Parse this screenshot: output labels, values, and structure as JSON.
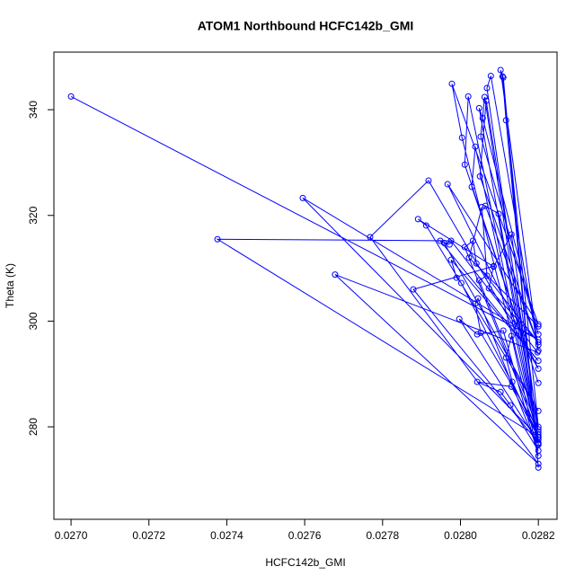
{
  "chart_data": {
    "type": "line",
    "title": "ATOM1 Northbound HCFC142b_GMI",
    "x_label": "HCFC142b_GMI",
    "y_label": "Theta (K)",
    "color": "#0000ff",
    "markers": true,
    "xlim": [
      0.026956,
      0.028248
    ],
    "ylim": [
      262.5,
      350.9
    ],
    "xticks": [
      {
        "value": 0.027,
        "label": "0.0270"
      },
      {
        "value": 0.0272,
        "label": "0.0272"
      },
      {
        "value": 0.0274,
        "label": "0.0274"
      },
      {
        "value": 0.0276,
        "label": "0.0276"
      },
      {
        "value": 0.0278,
        "label": "0.0278"
      },
      {
        "value": 0.028,
        "label": "0.0280"
      },
      {
        "value": 0.0282,
        "label": "0.0282"
      }
    ],
    "yticks": [
      280,
      300,
      320,
      340
    ],
    "x": [
      0.027,
      0.0282,
      0.027595,
      0.0282,
      0.027376,
      0.027976,
      0.028198,
      0.027678,
      0.0282,
      0.027768,
      0.027918,
      0.0282,
      0.027967,
      0.0282,
      0.027978,
      0.028004,
      0.0282,
      0.02802,
      0.028011,
      0.0282,
      0.028029,
      0.028038,
      0.0282,
      0.028048,
      0.028057,
      0.0282,
      0.028052,
      0.028062,
      0.0282,
      0.028068,
      0.028078,
      0.0282,
      0.028103,
      0.02811,
      0.0282,
      0.028117,
      0.028108,
      0.0282,
      0.028066,
      0.02805,
      0.0282,
      0.028064,
      0.028098,
      0.0282,
      0.028131,
      0.028085,
      0.027891,
      0.027912,
      0.0282,
      0.027958,
      0.027972,
      0.027948,
      0.0282,
      0.027976,
      0.02799,
      0.028002,
      0.0282,
      0.028011,
      0.028032,
      0.028041,
      0.0282,
      0.028073,
      0.028085,
      0.027879,
      0.0282,
      0.027997,
      0.028043,
      0.02811,
      0.0282,
      0.028131,
      0.028117,
      0.028133,
      0.0282,
      0.028131,
      0.028043,
      0.028103,
      0.028128,
      0.0282,
      0.028045,
      0.028038,
      0.028052,
      0.0282,
      0.028048,
      0.028068,
      0.028055,
      0.028022,
      0.0282
    ],
    "values": [
      342.5,
      296.5,
      323.3,
      278.1,
      315.5,
      315.2,
      294.1,
      308.8,
      273.0,
      315.9,
      326.6,
      291.0,
      325.9,
      299.4,
      344.9,
      334.7,
      277.6,
      342.5,
      329.6,
      288.3,
      325.4,
      333.0,
      276.8,
      340.3,
      338.4,
      297.5,
      334.9,
      342.4,
      276.6,
      344.1,
      346.4,
      294.4,
      347.5,
      346.1,
      272.3,
      338.0,
      346.3,
      280.0,
      341.7,
      327.4,
      295.5,
      321.8,
      320.3,
      279.0,
      316.4,
      310.3,
      319.3,
      318.1,
      283.0,
      314.8,
      314.5,
      315.2,
      292.5,
      311.6,
      308.2,
      307.2,
      278.5,
      314.0,
      315.2,
      310.9,
      296.0,
      306.2,
      310.4,
      306.0,
      277.0,
      300.4,
      297.5,
      298.2,
      274.5,
      297.2,
      293.1,
      288.5,
      278.0,
      287.6,
      288.5,
      286.6,
      284.1,
      275.5,
      304.3,
      303.3,
      297.8,
      279.5,
      307.7,
      308.6,
      321.6,
      312.0,
      299.0
    ]
  }
}
